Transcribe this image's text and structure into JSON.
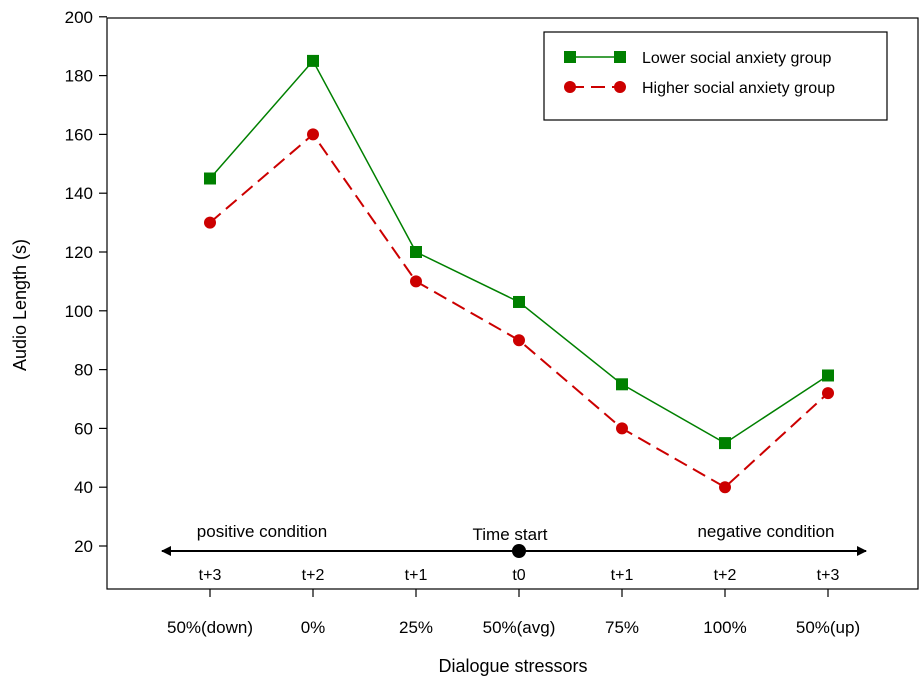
{
  "chart_data": {
    "type": "line",
    "title": "",
    "xlabel": "Dialogue stressors",
    "ylabel": "Audio Length (s)",
    "categories": [
      "50%(down)",
      "0%",
      "25%",
      "50%(avg)",
      "75%",
      "100%",
      "50%(up)"
    ],
    "ylim": [
      20,
      200
    ],
    "yticks": [
      20,
      40,
      60,
      80,
      100,
      120,
      140,
      160,
      180,
      200
    ],
    "grid": false,
    "legend_position": "top-right",
    "series": [
      {
        "name": "Lower social anxiety group",
        "values": [
          145,
          185,
          120,
          103,
          75,
          55,
          78
        ],
        "color": "#008000",
        "marker": "square",
        "line": "solid"
      },
      {
        "name": "Higher social anxiety group",
        "values": [
          130,
          160,
          110,
          90,
          60,
          40,
          72
        ],
        "color": "#cc0000",
        "marker": "circle",
        "line": "dashed"
      }
    ],
    "annotations": {
      "left_label": "positive condition",
      "center_label": "Time start",
      "right_label": "negative condition",
      "time_labels": [
        "t+3",
        "t+2",
        "t+1",
        "t0",
        "t+1",
        "t+2",
        "t+3"
      ]
    }
  }
}
